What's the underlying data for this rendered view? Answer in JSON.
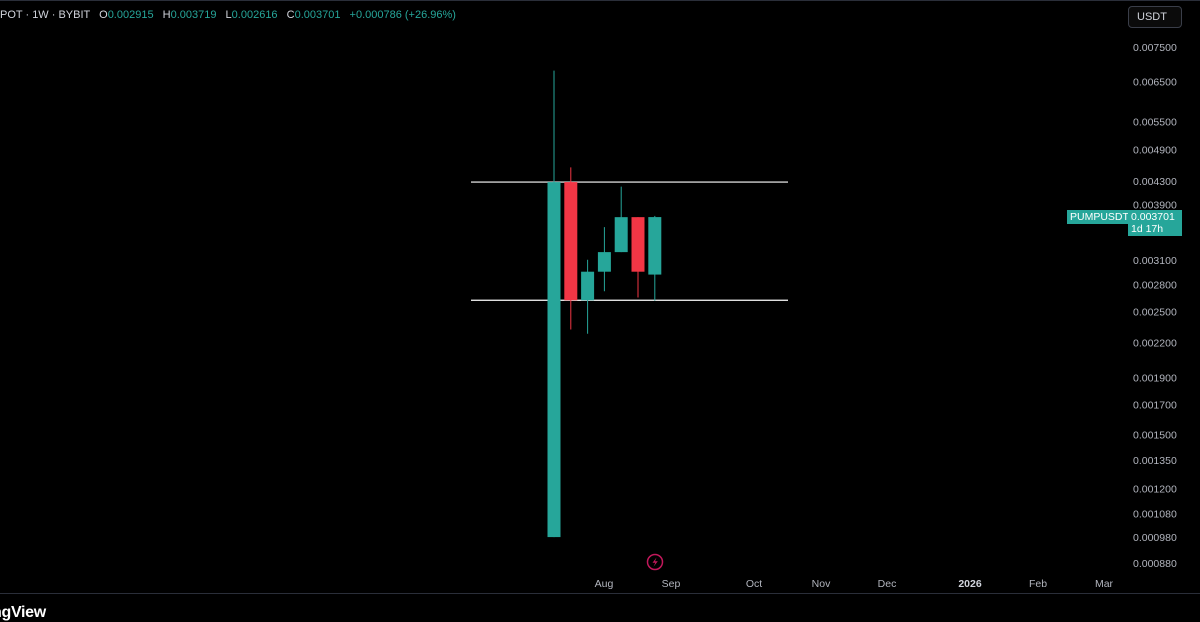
{
  "header": {
    "symbol_info": "POT · 1W · BYBIT",
    "open_label": "O",
    "open": "0.002915",
    "high_label": "H",
    "high": "0.003719",
    "low_label": "L",
    "low": "0.002616",
    "close_label": "C",
    "close": "0.003701",
    "change": "+0.000786 (+26.96%)"
  },
  "currency_button": "USDT",
  "price_tag": {
    "symbol": "PUMPUSDT",
    "price": "0.003701",
    "countdown": "1d 17h"
  },
  "footer_logo": "ngView",
  "colors": {
    "up": "#26a69a",
    "down": "#f23645",
    "background": "#000000",
    "level_line": "#ffffff"
  },
  "chart_data": {
    "type": "candlestick",
    "scale": "log",
    "y_ticks": [
      "0.007500",
      "0.006500",
      "0.005500",
      "0.004900",
      "0.004300",
      "0.003900",
      "0.003100",
      "0.002800",
      "0.002500",
      "0.002200",
      "0.001900",
      "0.001700",
      "0.001500",
      "0.001350",
      "0.001200",
      "0.001080",
      "0.000980",
      "0.000880"
    ],
    "x_ticks": [
      "Aug",
      "Sep",
      "Oct",
      "Nov",
      "Dec",
      "2026",
      "Feb",
      "Mar"
    ],
    "x_ticks_bold": [
      "2026"
    ],
    "candles": [
      {
        "open": 0.00098,
        "high": 0.0068,
        "low": 0.00098,
        "close": 0.00428
      },
      {
        "open": 0.00428,
        "high": 0.00455,
        "low": 0.00232,
        "close": 0.00262
      },
      {
        "open": 0.00262,
        "high": 0.0031,
        "low": 0.00228,
        "close": 0.00295
      },
      {
        "open": 0.00295,
        "high": 0.00355,
        "low": 0.00272,
        "close": 0.0032
      },
      {
        "open": 0.0032,
        "high": 0.0042,
        "low": 0.0032,
        "close": 0.0037
      },
      {
        "open": 0.0037,
        "high": 0.0037,
        "low": 0.00265,
        "close": 0.00295
      },
      {
        "open": 0.002915,
        "high": 0.003719,
        "low": 0.002616,
        "close": 0.003701
      }
    ],
    "horizontal_levels": [
      0.00428,
      0.00262
    ]
  }
}
